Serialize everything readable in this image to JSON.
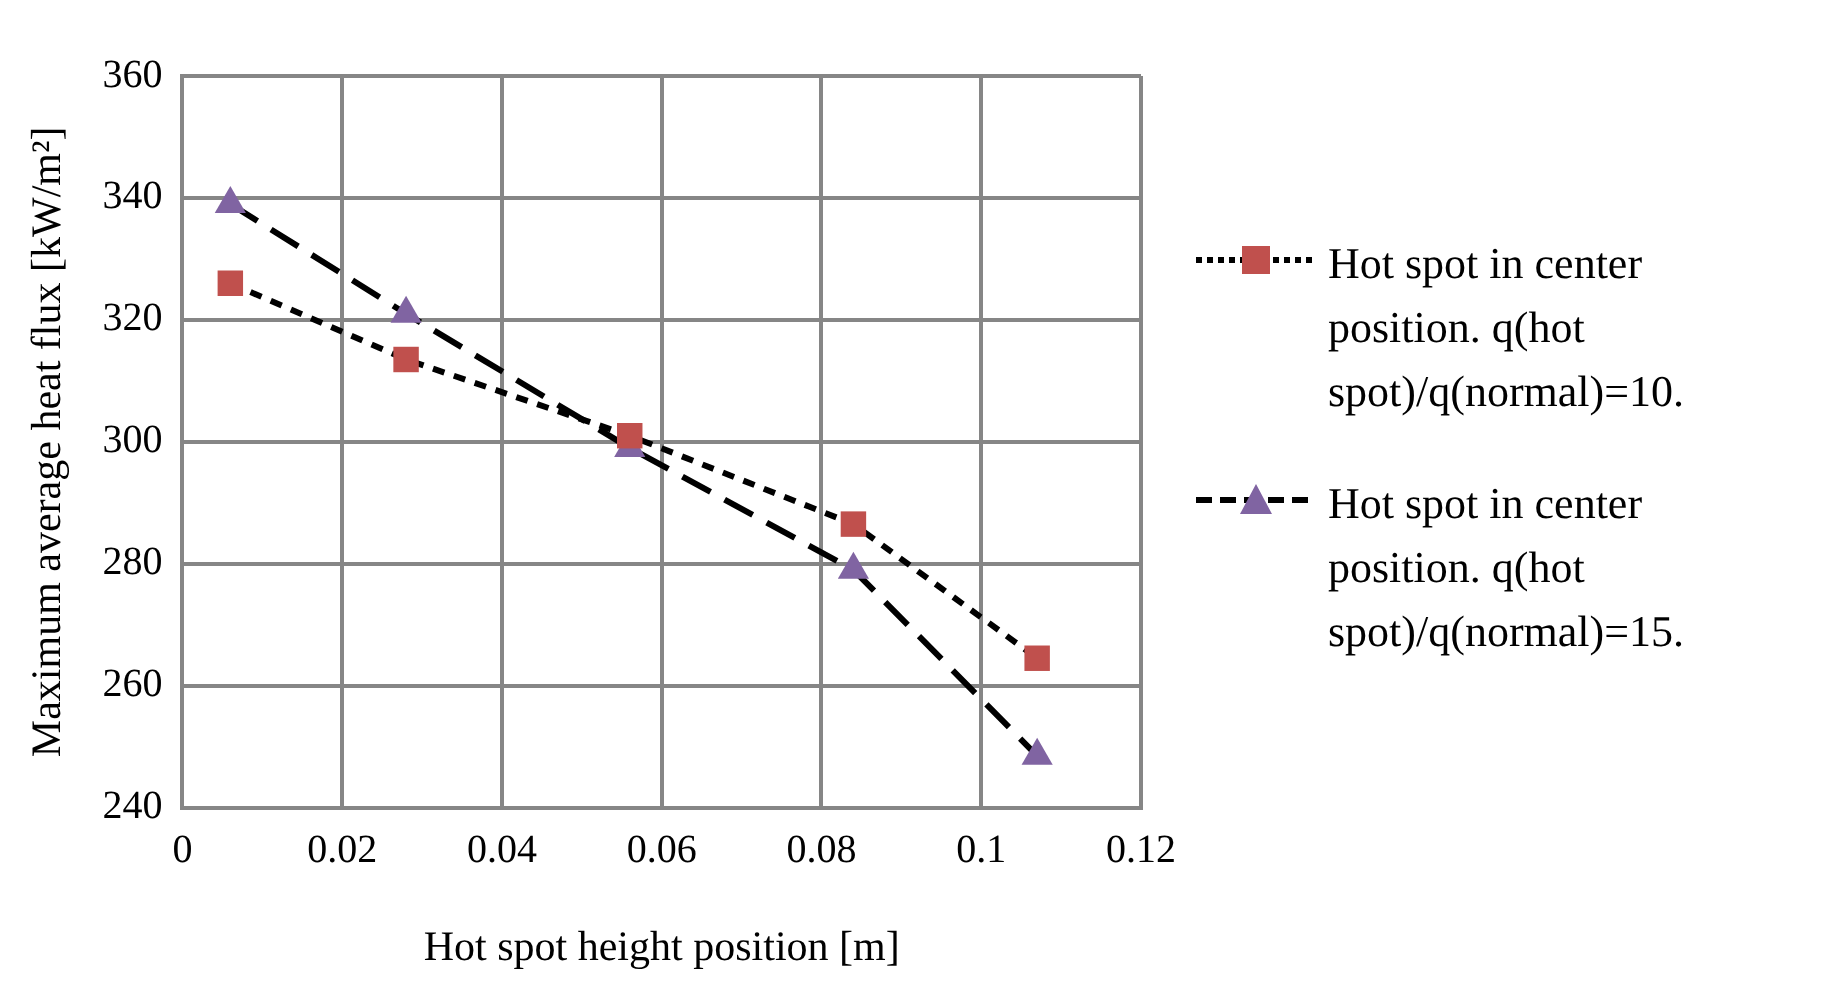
{
  "chart_data": {
    "type": "line",
    "xlabel": "Hot spot height position [m]",
    "ylabel": "Maximum average heat flux [kW/m²]",
    "xlim": [
      0,
      0.12
    ],
    "xticks": [
      0,
      0.02,
      0.04,
      0.06,
      0.08,
      0.1,
      0.12
    ],
    "ylim": [
      240,
      360
    ],
    "yticks": [
      240,
      260,
      280,
      300,
      320,
      340,
      360
    ],
    "grid": true,
    "legend": "right",
    "series": [
      {
        "name": "Hot spot in center position. q(hot spot)/q(normal)=10.",
        "color": "#c0504d",
        "marker": "square",
        "line_style": "dotted",
        "x": [
          0.006,
          0.028,
          0.056,
          0.084,
          0.107
        ],
        "values": [
          326,
          313.5,
          301,
          286.5,
          264.5
        ]
      },
      {
        "name": "Hot spot in center position. q(hot spot)/q(normal)=15.",
        "color": "#8064a2",
        "marker": "triangle",
        "line_style": "dashed",
        "x": [
          0.006,
          0.028,
          0.056,
          0.084,
          0.107
        ],
        "values": [
          339,
          321,
          299,
          279,
          248.5
        ]
      }
    ]
  }
}
